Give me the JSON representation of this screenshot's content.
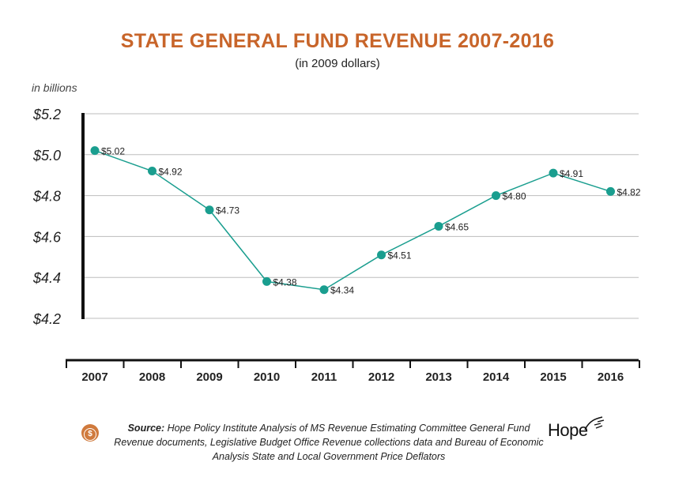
{
  "chart_data": {
    "type": "line",
    "title": "STATE GENERAL FUND REVENUE 2007-2016",
    "subtitle": "(in 2009 dollars)",
    "ylabel": "in billions",
    "categories": [
      "2007",
      "2008",
      "2009",
      "2010",
      "2011",
      "2012",
      "2013",
      "2014",
      "2015",
      "2016"
    ],
    "series": [
      {
        "values": [
          5.02,
          4.92,
          4.73,
          4.38,
          4.34,
          4.51,
          4.65,
          4.8,
          4.91,
          4.82
        ]
      }
    ],
    "data_labels": [
      "$5.02",
      "$4.92",
      "$4.73",
      "$4.38",
      "$4.34",
      "$4.51",
      "$4.65",
      "$4.80",
      "$4.91",
      "$4.82"
    ],
    "ylim": [
      4.2,
      5.2
    ],
    "yticks": [
      "$5.2",
      "$5.0",
      "$4.8",
      "$4.6",
      "$4.4",
      "$4.2"
    ],
    "grid": true,
    "line_color": "#1a9e8f",
    "title_color": "#c8652a"
  },
  "source": {
    "label": "Source:",
    "text": "Hope Policy Institute Analysis of MS Revenue Estimating Committee General Fund Revenue documents, Legislative Budget Office Revenue collections data and Bureau of Economic Analysis State and Local Government Price Deflators"
  },
  "logo": {
    "text": "Hope"
  },
  "coin_icon": "dollar-coin-icon"
}
